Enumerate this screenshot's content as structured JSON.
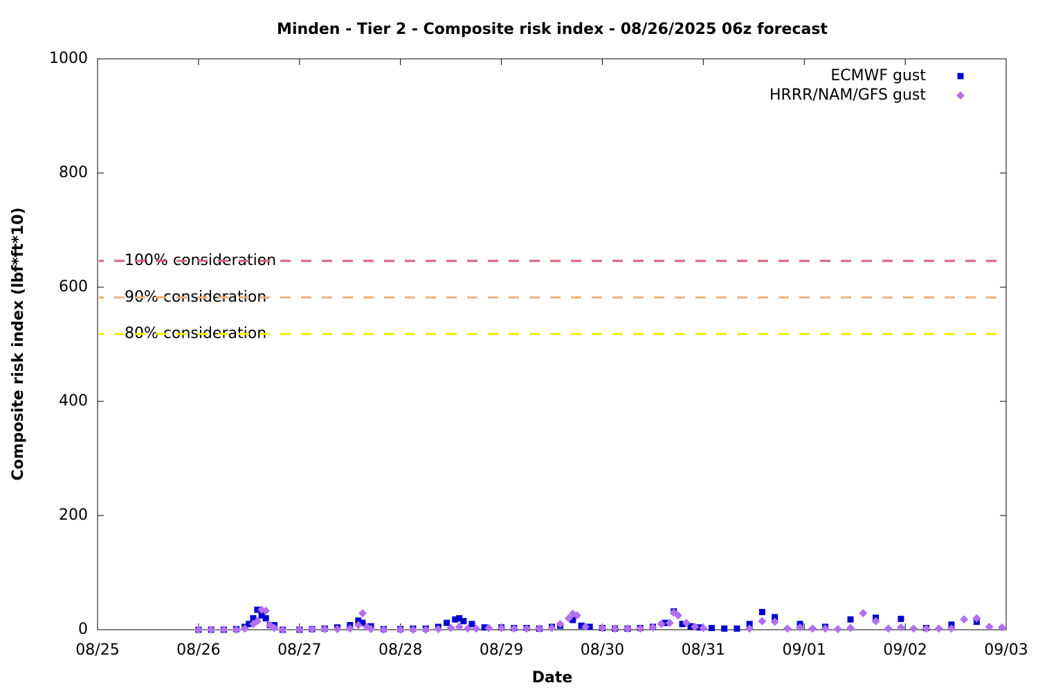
{
  "chart_data": {
    "type": "scatter",
    "title": "Minden - Tier 2 - Composite risk index - 08/26/2025 06z forecast",
    "xlabel": "Date",
    "ylabel": "Composite risk index (lbf*ft*10)",
    "xlim": [
      0,
      9
    ],
    "xticks": [
      {
        "value": 0,
        "label": "08/25"
      },
      {
        "value": 1,
        "label": "08/26"
      },
      {
        "value": 2,
        "label": "08/27"
      },
      {
        "value": 3,
        "label": "08/28"
      },
      {
        "value": 4,
        "label": "08/29"
      },
      {
        "value": 5,
        "label": "08/30"
      },
      {
        "value": 6,
        "label": "08/31"
      },
      {
        "value": 7,
        "label": "09/01"
      },
      {
        "value": 8,
        "label": "09/02"
      },
      {
        "value": 9,
        "label": "09/03"
      }
    ],
    "ylim": [
      0,
      1000
    ],
    "yticks": [
      0,
      200,
      400,
      600,
      800,
      1000
    ],
    "legend": "top-right",
    "thresholds": [
      {
        "label": "100% consideration",
        "value": 646,
        "color": "#d9607a"
      },
      {
        "label": "90% consideration",
        "value": 582,
        "color": "#f2b07a"
      },
      {
        "label": "80% consideration",
        "value": 518,
        "color": "#eeee00"
      }
    ],
    "series": [
      {
        "name": "ECMWF gust",
        "color": "#0000cc",
        "marker": "square",
        "x": [
          1,
          1.125,
          1.25,
          1.375,
          1.458,
          1.5,
          1.542,
          1.583,
          1.625,
          1.667,
          1.708,
          1.75,
          1.833,
          2,
          2.125,
          2.25,
          2.375,
          2.5,
          2.583,
          2.625,
          2.708,
          2.833,
          3,
          3.125,
          3.25,
          3.375,
          3.458,
          3.542,
          3.583,
          3.625,
          3.708,
          3.833,
          4,
          4.125,
          4.25,
          4.375,
          4.5,
          4.583,
          4.708,
          4.792,
          4.875,
          5,
          5.125,
          5.25,
          5.375,
          5.5,
          5.625,
          5.708,
          5.792,
          5.875,
          5.958,
          6.083,
          6.208,
          6.333,
          6.458,
          6.583,
          6.708,
          6.958,
          7.208,
          7.458,
          7.708,
          7.958,
          8.208,
          8.458,
          8.708
        ],
        "values": [
          0,
          0,
          0,
          1,
          5,
          10,
          20,
          35,
          25,
          20,
          8,
          8,
          0,
          0,
          1,
          2,
          4,
          8,
          16,
          12,
          6,
          1,
          1,
          2,
          2,
          5,
          12,
          18,
          20,
          15,
          10,
          4,
          4,
          3,
          3,
          2,
          5,
          7,
          17,
          7,
          5,
          3,
          2,
          2,
          3,
          5,
          12,
          32,
          10,
          6,
          4,
          3,
          2,
          2,
          10,
          31,
          22,
          10,
          5,
          18,
          21,
          19,
          3,
          9,
          14
        ]
      },
      {
        "name": "HRRR/NAM/GFS gust",
        "color": "#b070f0",
        "marker": "diamond",
        "x": [
          1,
          1.125,
          1.25,
          1.375,
          1.458,
          1.542,
          1.583,
          1.625,
          1.667,
          1.708,
          1.75,
          1.833,
          2,
          2.125,
          2.25,
          2.375,
          2.5,
          2.583,
          2.625,
          2.667,
          2.708,
          2.833,
          3,
          3.125,
          3.25,
          3.375,
          3.5,
          3.583,
          3.667,
          3.75,
          3.875,
          4,
          4.125,
          4.25,
          4.375,
          4.5,
          4.583,
          4.667,
          4.708,
          4.75,
          4.833,
          5,
          5.125,
          5.25,
          5.375,
          5.5,
          5.583,
          5.667,
          5.708,
          5.75,
          5.833,
          5.917,
          6,
          6.458,
          6.583,
          6.708,
          6.833,
          6.958,
          7.083,
          7.208,
          7.333,
          7.458,
          7.583,
          7.708,
          7.833,
          7.958,
          8.083,
          8.208,
          8.333,
          8.458,
          8.583,
          8.708,
          8.833,
          8.958
        ],
        "values": [
          0,
          0,
          0,
          0,
          2,
          10,
          15,
          35,
          33,
          8,
          3,
          0,
          0,
          1,
          1,
          1,
          2,
          8,
          29,
          5,
          1,
          0,
          0,
          0,
          0,
          1,
          3,
          5,
          2,
          2,
          3,
          3,
          2,
          2,
          2,
          3,
          10,
          20,
          28,
          25,
          5,
          3,
          2,
          2,
          2,
          4,
          10,
          12,
          30,
          25,
          12,
          5,
          3,
          2,
          15,
          14,
          2,
          4,
          2,
          2,
          1,
          3,
          29,
          15,
          2,
          4,
          2,
          2,
          2,
          2,
          18,
          20,
          5,
          4
        ]
      }
    ]
  }
}
